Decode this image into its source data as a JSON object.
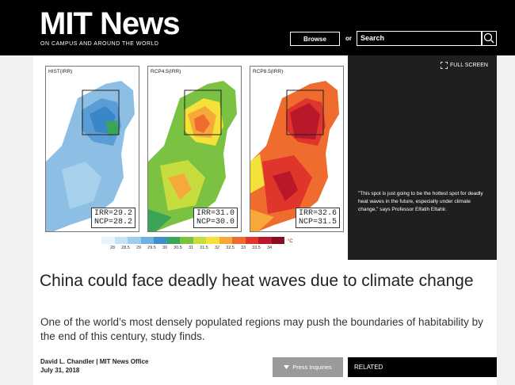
{
  "header": {
    "logo": "MIT News",
    "tagline": "ON CAMPUS AND AROUND THE WORLD",
    "browse_label": "Browse",
    "or_label": "or",
    "search_value": "Search"
  },
  "figure": {
    "fullscreen_label": "FULL SCREEN",
    "caption": "\"This spot is just going to be the hottest spot for deadly heat waves in the future, especially under climate change,\" says Professor Elfatih Eltahir.",
    "panels": [
      {
        "label": "HIST(IRR)",
        "irr": "IRR=29.2",
        "ncp": "NCP=28.2"
      },
      {
        "label": "RCP4.5(IRR)",
        "irr": "IRR=31.0",
        "ncp": "NCP=30.0"
      },
      {
        "label": "RCP8.5(IRR)",
        "irr": "IRR=32.6",
        "ncp": "NCP=31.5"
      }
    ],
    "legend": {
      "ticks": [
        "28",
        "28.5",
        "29",
        "29.5",
        "30",
        "30.5",
        "31",
        "31.5",
        "32",
        "32.5",
        "33",
        "33.5",
        "34"
      ],
      "unit": "°C",
      "colors": [
        "#e8f3fb",
        "#c6e2f5",
        "#9fcdeb",
        "#6fb2df",
        "#3f8fcc",
        "#3aa556",
        "#7cc242",
        "#c7dc3f",
        "#f4e23a",
        "#f6a93a",
        "#ef6b2e",
        "#e0352b",
        "#b9172a",
        "#8b0d24"
      ]
    }
  },
  "article": {
    "title": "China could face deadly heat waves due to climate change",
    "dek": "One of the world’s most densely populated regions may push the boundaries of habitability by the end of this century, study finds.",
    "author": "David L. Chandler | MIT News Office",
    "date": "July 31, 2018",
    "press_label": "Press Inquiries",
    "related_label": "RELATED"
  }
}
